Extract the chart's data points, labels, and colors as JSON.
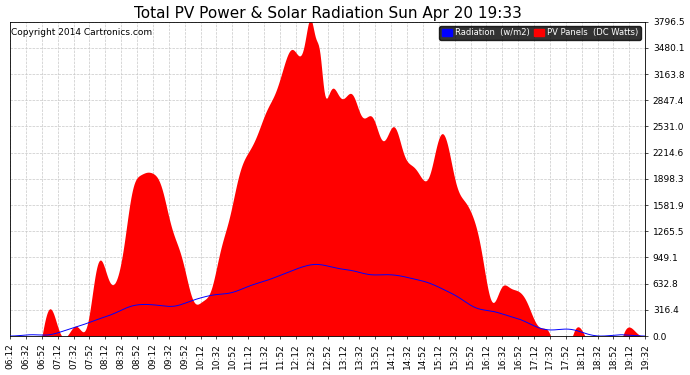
{
  "title": "Total PV Power & Solar Radiation Sun Apr 20 19:33",
  "copyright": "Copyright 2014 Cartronics.com",
  "background_color": "#ffffff",
  "plot_bg_color": "#ffffff",
  "grid_color": "#c8c8c8",
  "y_ticks": [
    0.0,
    316.4,
    632.8,
    949.1,
    1265.5,
    1581.9,
    1898.3,
    2214.6,
    2531.0,
    2847.4,
    3163.8,
    3480.1,
    3796.5
  ],
  "ymax": 3796.5,
  "legend_radiation_label": "Radiation  (w/m2)",
  "legend_pv_label": "PV Panels  (DC Watts)",
  "legend_radiation_color": "#0000ff",
  "legend_pv_color": "#ff0000",
  "pv_color": "#ff0000",
  "radiation_color": "#0000ff",
  "title_fontsize": 11,
  "axis_fontsize": 6.5,
  "copyright_fontsize": 6.5,
  "figwidth": 6.9,
  "figheight": 3.75,
  "dpi": 100
}
